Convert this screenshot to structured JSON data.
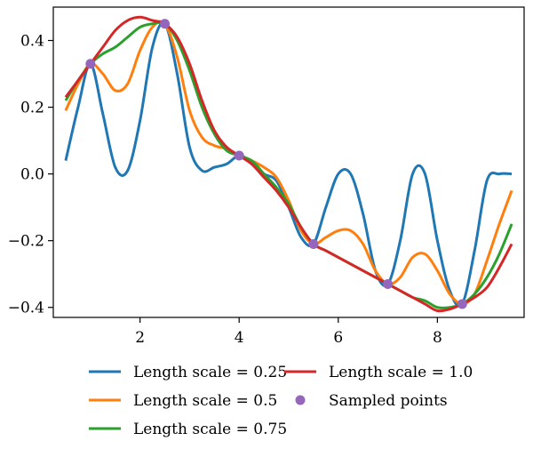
{
  "chart_data": {
    "type": "line",
    "title": "",
    "xlabel": "",
    "ylabel": "",
    "xlim": [
      0.25,
      9.75
    ],
    "ylim": [
      -0.43,
      0.5
    ],
    "xticks": [
      2,
      4,
      6,
      8
    ],
    "yticks": [
      -0.4,
      -0.2,
      0.0,
      0.2,
      0.4
    ],
    "xtick_labels": [
      "2",
      "4",
      "6",
      "8"
    ],
    "ytick_labels": [
      "−0.4",
      "−0.2",
      "0.0",
      "0.2",
      "0.4"
    ],
    "grid": false,
    "legend_position": "bottom",
    "series": [
      {
        "name": "Length scale = 0.25",
        "color": "#1f77b4",
        "x": [
          0.5,
          0.75,
          1.0,
          1.25,
          1.5,
          1.75,
          2.0,
          2.25,
          2.5,
          2.75,
          3.0,
          3.25,
          3.5,
          3.75,
          4.0,
          4.25,
          4.5,
          4.75,
          5.0,
          5.25,
          5.5,
          5.75,
          6.0,
          6.25,
          6.5,
          6.75,
          7.0,
          7.25,
          7.5,
          7.75,
          8.0,
          8.25,
          8.5,
          8.75,
          9.0,
          9.25,
          9.5
        ],
        "y": [
          0.04,
          0.2,
          0.33,
          0.18,
          0.02,
          0.01,
          0.16,
          0.38,
          0.45,
          0.3,
          0.08,
          0.01,
          0.02,
          0.03,
          0.055,
          0.035,
          0.0,
          -0.02,
          -0.1,
          -0.19,
          -0.21,
          -0.1,
          0.0,
          0.0,
          -0.12,
          -0.29,
          -0.33,
          -0.2,
          0.0,
          0.0,
          -0.2,
          -0.35,
          -0.39,
          -0.23,
          -0.02,
          0.0,
          0.0
        ]
      },
      {
        "name": "Length scale = 0.5",
        "color": "#ff7f0e",
        "x": [
          0.5,
          0.75,
          1.0,
          1.25,
          1.5,
          1.75,
          2.0,
          2.25,
          2.5,
          2.75,
          3.0,
          3.25,
          3.5,
          3.75,
          4.0,
          4.25,
          4.5,
          4.75,
          5.0,
          5.25,
          5.5,
          5.75,
          6.0,
          6.25,
          6.5,
          6.75,
          7.0,
          7.25,
          7.5,
          7.75,
          8.0,
          8.25,
          8.5,
          8.75,
          9.0,
          9.25,
          9.5
        ],
        "y": [
          0.19,
          0.27,
          0.33,
          0.3,
          0.25,
          0.27,
          0.37,
          0.44,
          0.45,
          0.35,
          0.19,
          0.11,
          0.085,
          0.075,
          0.055,
          0.04,
          0.02,
          -0.01,
          -0.08,
          -0.17,
          -0.21,
          -0.19,
          -0.17,
          -0.17,
          -0.21,
          -0.29,
          -0.33,
          -0.31,
          -0.25,
          -0.24,
          -0.29,
          -0.36,
          -0.39,
          -0.36,
          -0.26,
          -0.15,
          -0.05
        ]
      },
      {
        "name": "Length scale = 0.75",
        "color": "#2ca02c",
        "x": [
          0.5,
          0.75,
          1.0,
          1.25,
          1.5,
          1.75,
          2.0,
          2.25,
          2.5,
          2.75,
          3.0,
          3.25,
          3.5,
          3.75,
          4.0,
          4.25,
          4.5,
          4.75,
          5.0,
          5.25,
          5.5,
          5.75,
          6.0,
          6.25,
          6.5,
          6.75,
          7.0,
          7.25,
          7.5,
          7.75,
          8.0,
          8.25,
          8.5,
          8.75,
          9.0,
          9.25,
          9.5
        ],
        "y": [
          0.22,
          0.28,
          0.33,
          0.36,
          0.38,
          0.41,
          0.44,
          0.45,
          0.45,
          0.4,
          0.31,
          0.2,
          0.12,
          0.07,
          0.055,
          0.04,
          0.0,
          -0.04,
          -0.09,
          -0.16,
          -0.21,
          -0.23,
          -0.25,
          -0.27,
          -0.29,
          -0.31,
          -0.33,
          -0.35,
          -0.37,
          -0.38,
          -0.4,
          -0.4,
          -0.39,
          -0.36,
          -0.31,
          -0.24,
          -0.15
        ]
      },
      {
        "name": "Length scale = 1.0",
        "color": "#d62728",
        "x": [
          0.5,
          0.75,
          1.0,
          1.25,
          1.5,
          1.75,
          2.0,
          2.25,
          2.5,
          2.75,
          3.0,
          3.25,
          3.5,
          3.75,
          4.0,
          4.25,
          4.5,
          4.75,
          5.0,
          5.25,
          5.5,
          5.75,
          6.0,
          6.25,
          6.5,
          6.75,
          7.0,
          7.25,
          7.5,
          7.75,
          8.0,
          8.25,
          8.5,
          8.75,
          9.0,
          9.25,
          9.5
        ],
        "y": [
          0.23,
          0.28,
          0.33,
          0.38,
          0.43,
          0.46,
          0.47,
          0.46,
          0.45,
          0.41,
          0.33,
          0.22,
          0.13,
          0.08,
          0.055,
          0.03,
          -0.01,
          -0.05,
          -0.1,
          -0.16,
          -0.21,
          -0.23,
          -0.25,
          -0.27,
          -0.29,
          -0.31,
          -0.33,
          -0.35,
          -0.37,
          -0.39,
          -0.41,
          -0.405,
          -0.39,
          -0.37,
          -0.34,
          -0.28,
          -0.21
        ]
      }
    ],
    "points": {
      "name": "Sampled points",
      "color": "#9467bd",
      "x": [
        1.0,
        2.5,
        4.0,
        5.5,
        7.0,
        8.5
      ],
      "y": [
        0.33,
        0.45,
        0.055,
        -0.21,
        -0.33,
        -0.39
      ]
    },
    "legend": [
      {
        "label": "Length scale = 0.25",
        "kind": "line",
        "color": "#1f77b4"
      },
      {
        "label": "Length scale = 0.5",
        "kind": "line",
        "color": "#ff7f0e"
      },
      {
        "label": "Length scale = 0.75",
        "kind": "line",
        "color": "#2ca02c"
      },
      {
        "label": "Length scale = 1.0",
        "kind": "line",
        "color": "#d62728"
      },
      {
        "label": "Sampled points",
        "kind": "marker",
        "color": "#9467bd"
      }
    ]
  }
}
